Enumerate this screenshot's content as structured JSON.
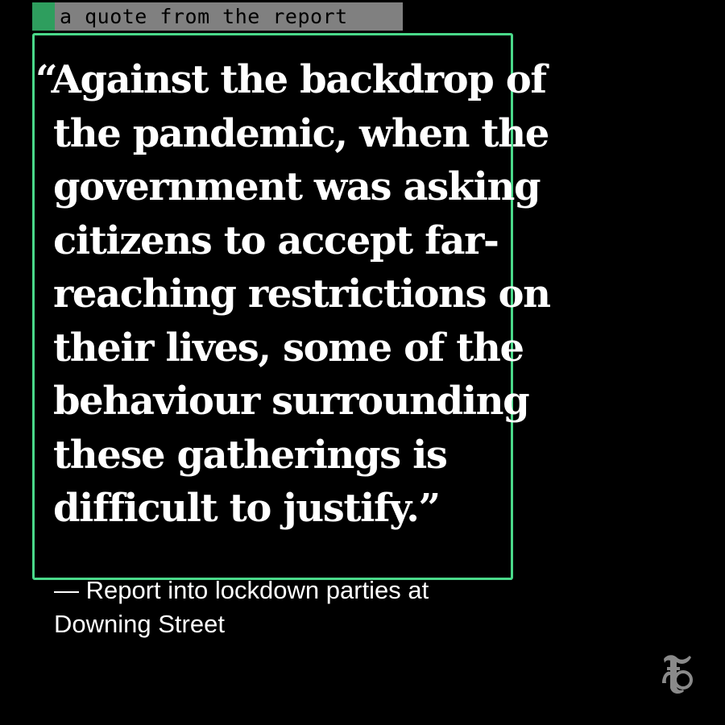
{
  "annotation": {
    "label": "a quote from the report",
    "swatch_color": "#2e9e5e",
    "box_color": "#4ad98a"
  },
  "quote": {
    "lines": [
      "“Against the backdrop of",
      "the pandemic, when the",
      "government was asking",
      "citizens to accept far-",
      "reaching restrictions on",
      "their lives, some of the",
      "behaviour surrounding",
      "these gatherings is",
      "difficult to justify.”"
    ]
  },
  "attribution": {
    "lines": [
      "— Report into lockdown parties at",
      "Downing Street"
    ]
  },
  "logo": {
    "icon": "nyt-logo-icon",
    "glyph": "𝕿"
  },
  "colors": {
    "background": "#000000",
    "text": "#ffffff"
  }
}
